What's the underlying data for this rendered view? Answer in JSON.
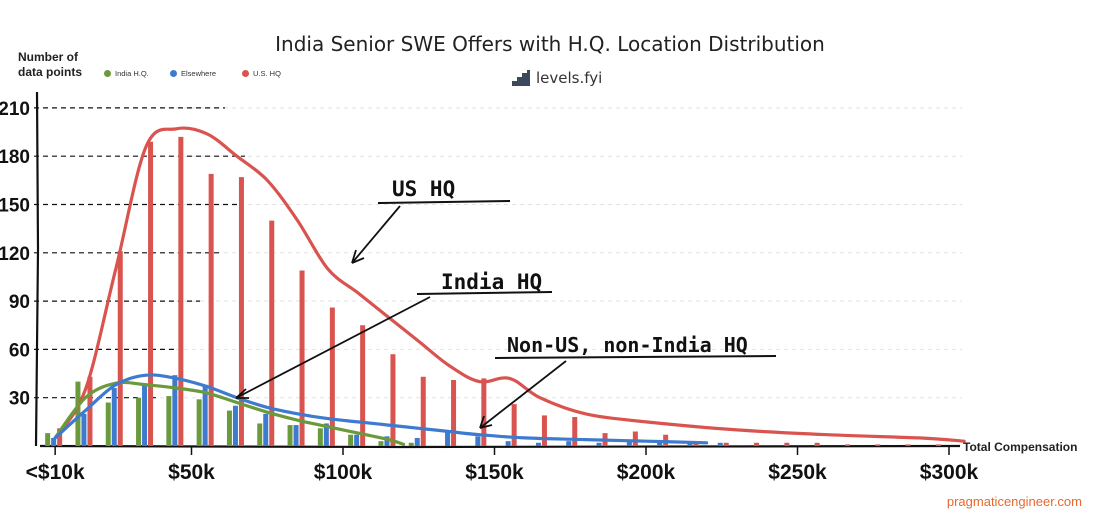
{
  "chart_data": {
    "type": "bar",
    "title": "India Senior SWE Offers with H.Q. Location Distribution",
    "ylabel": "Number of\ndata points",
    "xlabel": "Total Compensation",
    "ylim": [
      0,
      215
    ],
    "y_ticks": [
      30,
      60,
      90,
      120,
      150,
      180,
      210
    ],
    "y_tick_labels": [
      "30",
      "60",
      "90",
      "120",
      "150",
      "180",
      "210"
    ],
    "x_ticks": [
      {
        "value": 5,
        "label": "<$10k"
      },
      {
        "value": 50,
        "label": "$50k"
      },
      {
        "value": 100,
        "label": "$100k"
      },
      {
        "value": 150,
        "label": "$150k"
      },
      {
        "value": 200,
        "label": "$200k"
      },
      {
        "value": 250,
        "label": "$250k"
      },
      {
        "value": 300,
        "label": "$300k"
      }
    ],
    "categories": [
      5,
      15,
      25,
      35,
      45,
      55,
      65,
      75,
      85,
      95,
      105,
      115,
      125,
      135,
      145,
      155,
      165,
      175,
      185,
      195,
      205,
      215,
      225,
      235,
      245,
      255,
      265,
      275,
      285,
      295,
      305
    ],
    "series": [
      {
        "name": "India H.Q.",
        "color": "#6a9a3c",
        "values": [
          8,
          40,
          27,
          30,
          31,
          29,
          22,
          14,
          13,
          11,
          7,
          3,
          2,
          0,
          0,
          0,
          0,
          0,
          0,
          0,
          0,
          0,
          0,
          0,
          0,
          0,
          0,
          0,
          0,
          0,
          0
        ]
      },
      {
        "name": "Elsewhere",
        "color": "#3e7bcf",
        "values": [
          5,
          20,
          36,
          39,
          44,
          38,
          25,
          20,
          13,
          14,
          7,
          6,
          5,
          9,
          6,
          3,
          2,
          3,
          2,
          3,
          2,
          3,
          2,
          0,
          0,
          0,
          0,
          0,
          0,
          0,
          0
        ]
      },
      {
        "name": "U.S. HQ",
        "color": "#d9534f",
        "values": [
          11,
          43,
          121,
          189,
          192,
          169,
          167,
          140,
          109,
          86,
          75,
          57,
          43,
          41,
          42,
          26,
          19,
          18,
          8,
          9,
          7,
          3,
          2,
          2,
          2,
          2,
          1,
          1,
          1,
          1,
          0
        ]
      }
    ],
    "annotations": [
      {
        "text": "US HQ",
        "series": "U.S. HQ"
      },
      {
        "text": "India HQ",
        "series": "India H.Q."
      },
      {
        "text": "Non-US, non-India HQ",
        "series": "Elsewhere"
      }
    ]
  },
  "legend": {
    "items": [
      {
        "label": "India H.Q.",
        "color": "#6a9a3c"
      },
      {
        "label": "Elsewhere",
        "color": "#3e7bcf"
      },
      {
        "label": "U.S. HQ",
        "color": "#d9534f"
      }
    ]
  },
  "logo": {
    "text": "levels.fyi"
  },
  "watermark": {
    "text": "pragmaticengineer.com"
  }
}
